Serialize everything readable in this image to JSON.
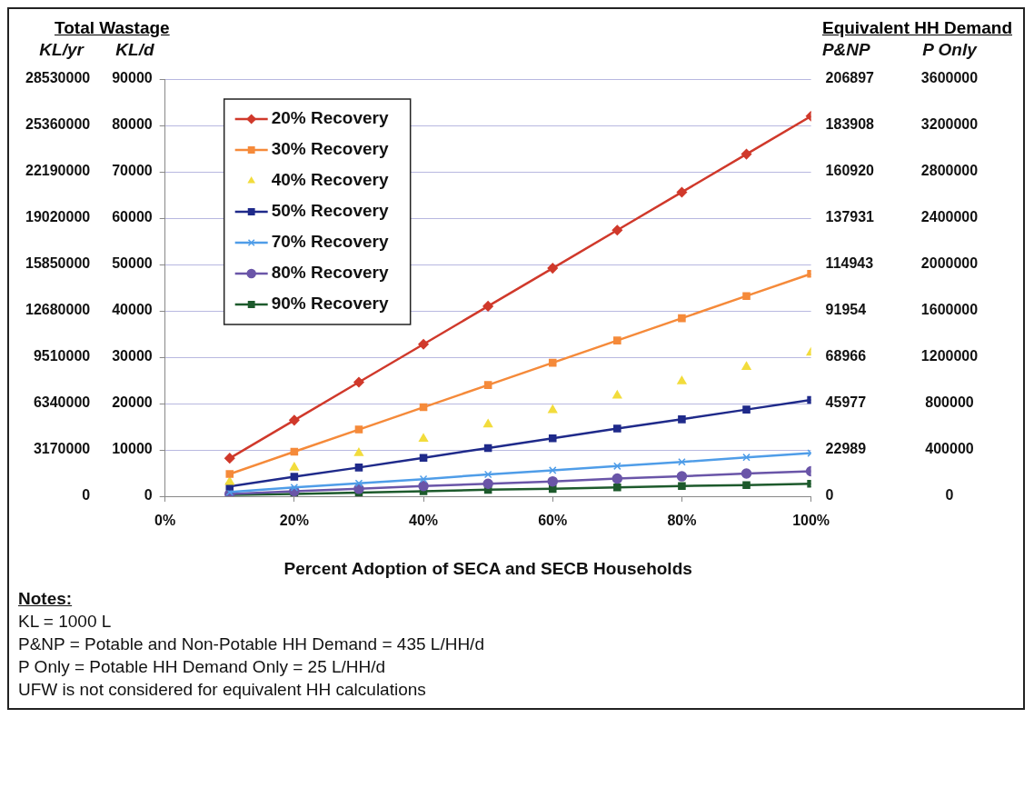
{
  "chart_data": {
    "type": "line",
    "xlabel": "Percent Adoption of SECA and SECB Households",
    "ylabel": "KL/d",
    "y2label": "KL/yr",
    "y3label": "P&NP",
    "annotations": [
      "Total Wastage",
      "Equivalent HH Demand",
      "Notes:",
      "KL = 1000 L",
      "P&NP = Potable and Non-Potable HH Demand = 435 L/HH/d",
      "P Only = Potable HH Demand Only = 25 L/HH/d",
      "UFW is not considered for equivalent HH calculations",
      "P Only",
      "3600000",
      "3200000",
      "2800000",
      "2400000",
      "2000000",
      "1600000",
      "1200000",
      "800000",
      "400000",
      "0"
    ],
    "x": [
      10,
      20,
      30,
      40,
      50,
      60,
      70,
      80,
      90,
      100
    ],
    "xlim": [
      0,
      100
    ],
    "xticks": [
      {
        "value": 0,
        "label": "0%"
      },
      {
        "value": 20,
        "label": "20%"
      },
      {
        "value": 40,
        "label": "40%"
      },
      {
        "value": 60,
        "label": "60%"
      },
      {
        "value": 80,
        "label": "80%"
      },
      {
        "value": 100,
        "label": "100%"
      }
    ],
    "ylim": [
      0,
      90000
    ],
    "yticks": [
      0,
      10000,
      20000,
      30000,
      40000,
      50000,
      60000,
      70000,
      80000,
      90000
    ],
    "y2lim": [
      0,
      28530000
    ],
    "y2ticks": [
      0,
      3170000,
      6340000,
      9510000,
      12680000,
      15850000,
      19020000,
      22190000,
      25360000,
      28530000
    ],
    "y3lim": [
      0,
      206897
    ],
    "y3ticks": [
      0,
      22989,
      45977,
      68966,
      91954,
      114943,
      137931,
      160920,
      183908,
      206897
    ],
    "grid": "y",
    "legend": "top left",
    "series": [
      {
        "name": "20% Recovery",
        "color": "#d0392b",
        "marker": "diamond",
        "values": [
          8200,
          16400,
          24600,
          32800,
          41000,
          49200,
          57400,
          65600,
          73800,
          82000
        ]
      },
      {
        "name": "30% Recovery",
        "color": "#f58a3a",
        "marker": "square",
        "values": [
          4800,
          9600,
          14400,
          19200,
          24000,
          28800,
          33600,
          38400,
          43200,
          48000
        ]
      },
      {
        "name": "40% Recovery",
        "type": "scatter",
        "color": "#f2dc3c",
        "marker": "triangle",
        "values": [
          3100,
          6200,
          9300,
          12400,
          15500,
          18600,
          21700,
          24800,
          27900,
          31000
        ]
      },
      {
        "name": "50% Recovery",
        "color": "#1f2a8a",
        "marker": "square",
        "values": [
          2100,
          4200,
          6200,
          8300,
          10400,
          12500,
          14600,
          16600,
          18700,
          20800
        ]
      },
      {
        "name": "70% Recovery",
        "color": "#4f9de8",
        "marker": "cross",
        "values": [
          900,
          1900,
          2800,
          3700,
          4700,
          5600,
          6500,
          7400,
          8400,
          9300
        ]
      },
      {
        "name": "80% Recovery",
        "color": "#6a55a8",
        "marker": "circle",
        "values": [
          500,
          1100,
          1600,
          2200,
          2700,
          3200,
          3800,
          4300,
          4900,
          5400
        ]
      },
      {
        "name": "90% Recovery",
        "color": "#1d5a2c",
        "marker": "square",
        "values": [
          300,
          500,
          800,
          1100,
          1400,
          1600,
          1900,
          2200,
          2400,
          2700
        ]
      }
    ]
  }
}
